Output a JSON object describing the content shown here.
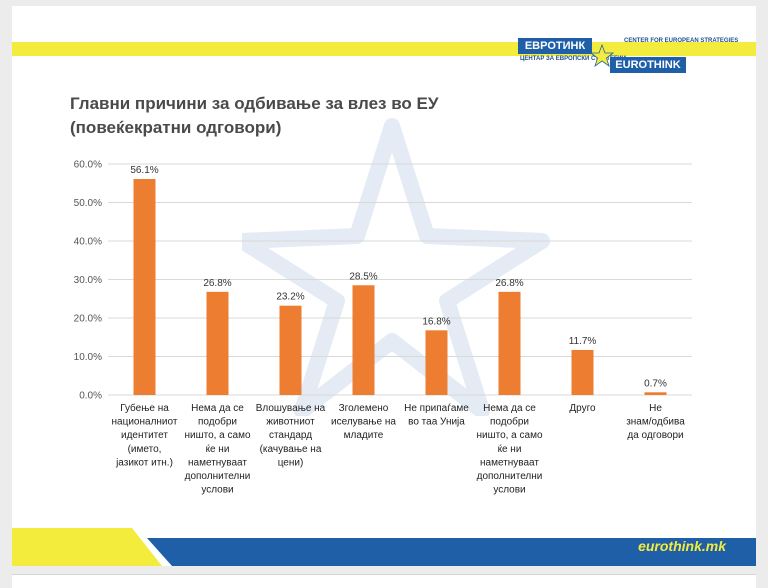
{
  "header": {
    "logo_mk_name": "ЕВРОТИНК",
    "logo_mk_sub": "ЦЕНТАР ЗА ЕВРОПСКИ СТРАТЕГИИ",
    "logo_en_name": "EUROTHINK",
    "logo_en_sub": "CENTER FOR EUROPEAN STRATEGIES"
  },
  "title_line1": "Главни причини за одбивање за влез во ЕУ",
  "title_line2": "(повеќекратни одговори)",
  "footer": {
    "website": "eurothink.mk"
  },
  "colors": {
    "bar": "#ed7d31",
    "grid": "#d9d9d9",
    "band_yellow": "#f4ec3c",
    "band_blue": "#1f5fa8"
  },
  "chart_data": {
    "type": "bar",
    "title": "Главни причини за одбивање за влез во ЕУ (повеќекратни одговори)",
    "ylim": [
      0,
      60
    ],
    "yticks": [
      "0.0%",
      "10.0%",
      "20.0%",
      "30.0%",
      "40.0%",
      "50.0%",
      "60.0%"
    ],
    "grid": true,
    "legend": "none",
    "categories": [
      [
        "Губење на",
        "националниот",
        "идентитет",
        "(името,",
        "јазикот итн.)"
      ],
      [
        "Нема да се",
        "подобри",
        "ништо, а само",
        "ќе ни",
        "наметнуваат",
        "дополнителни",
        "услови"
      ],
      [
        "Влошување на",
        "животниот",
        "стандард",
        "(качување на",
        "цени)"
      ],
      [
        "Зголемено",
        "иселување на",
        "младите"
      ],
      [
        "Не припаѓаме",
        "во таа Унија"
      ],
      [
        "Нема да се",
        "подобри",
        "ништо, а само",
        "ќе ни",
        "наметнуваат",
        "дополнителни",
        "услови"
      ],
      [
        "Друго"
      ],
      [
        "Не",
        "знам/одбива",
        "да одговори"
      ]
    ],
    "values": [
      56.1,
      26.8,
      23.2,
      28.5,
      16.8,
      26.8,
      11.7,
      0.7
    ],
    "data_labels": [
      "56.1%",
      "26.8%",
      "23.2%",
      "28.5%",
      "16.8%",
      "26.8%",
      "11.7%",
      "0.7%"
    ]
  }
}
